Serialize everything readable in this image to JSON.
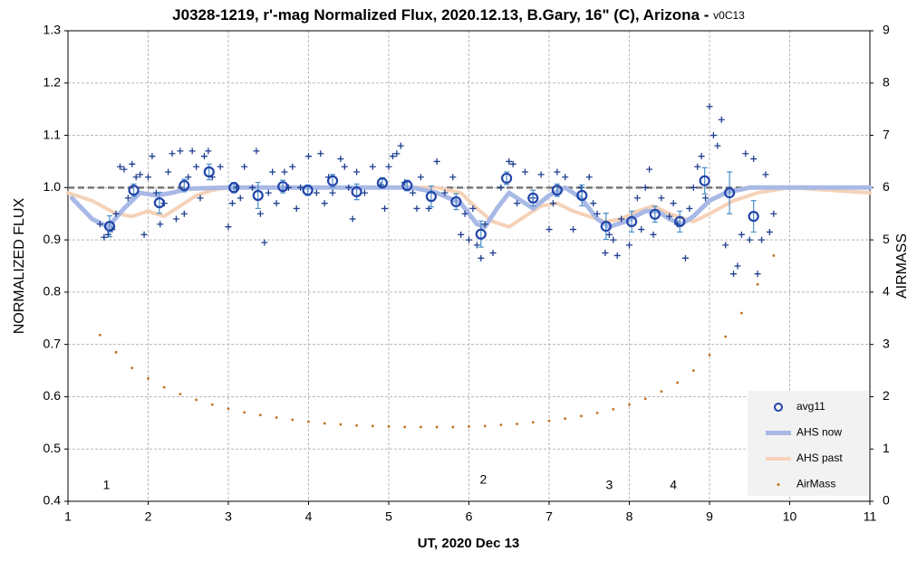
{
  "chart_data": {
    "type": "scatter",
    "title": "J0328-1219, r'-mag Normalized Flux, 2020.12.13, B.Gary, 16\" (C), Arizona - ",
    "title_suffix": "v0C13",
    "xlabel": "UT, 2020 Dec 13",
    "ylabel": "NORMALIZED FLUX",
    "y2label": "AIRMASS",
    "xlim": [
      1,
      11
    ],
    "xticks": [
      1,
      2,
      3,
      4,
      5,
      6,
      7,
      8,
      9,
      10,
      11
    ],
    "ylim": [
      0.4,
      1.3
    ],
    "yticks": [
      0.4,
      0.5,
      0.6,
      0.7,
      0.8,
      0.9,
      {
        "value": 1,
        "label": "1.0"
      },
      1.1,
      1.2,
      1.3
    ],
    "y2lim": [
      0,
      9
    ],
    "y2ticks": [
      0,
      1,
      2,
      3,
      4,
      5,
      6,
      7,
      8,
      9
    ],
    "grid": true,
    "legend": "lower right",
    "reference_line": 1,
    "annotations": [
      {
        "text": "1",
        "x": 1.48,
        "y": 0.43
      },
      {
        "text": "2",
        "x": 6.18,
        "y": 0.44
      },
      {
        "text": "3",
        "x": 7.75,
        "y": 0.43
      },
      {
        "text": "4",
        "x": 8.55,
        "y": 0.43
      }
    ],
    "series": [
      {
        "marker": "plus",
        "color": "#1f3f8f",
        "x": [
          1.4,
          1.45,
          1.5,
          1.55,
          1.6,
          1.65,
          1.7,
          1.75,
          1.8,
          1.85,
          1.9,
          1.95,
          2.0,
          2.05,
          2.1,
          2.15,
          2.2,
          2.25,
          2.3,
          2.35,
          2.4,
          2.45,
          2.5,
          2.55,
          2.6,
          2.65,
          2.7,
          2.75,
          2.8,
          2.9,
          3.0,
          3.05,
          3.1,
          3.15,
          3.2,
          3.3,
          3.35,
          3.4,
          3.45,
          3.5,
          3.55,
          3.6,
          3.7,
          3.75,
          3.8,
          3.85,
          3.9,
          4.0,
          4.1,
          4.15,
          4.2,
          4.25,
          4.3,
          4.4,
          4.45,
          4.5,
          4.55,
          4.6,
          4.7,
          4.8,
          4.9,
          4.95,
          5.0,
          5.05,
          5.1,
          5.15,
          5.2,
          5.3,
          5.35,
          5.4,
          5.5,
          5.6,
          5.7,
          5.8,
          5.9,
          5.95,
          6.0,
          6.05,
          6.1,
          6.15,
          6.2,
          6.3,
          6.4,
          6.5,
          6.55,
          6.6,
          6.7,
          6.8,
          6.9,
          7.0,
          7.05,
          7.1,
          7.2,
          7.3,
          7.4,
          7.5,
          7.55,
          7.6,
          7.7,
          7.75,
          7.8,
          7.85,
          7.9,
          8.0,
          8.1,
          8.15,
          8.2,
          8.25,
          8.3,
          8.4,
          8.5,
          8.55,
          8.6,
          8.7,
          8.75,
          8.8,
          8.85,
          8.9,
          8.95,
          9.0,
          9.05,
          9.1,
          9.15,
          9.2,
          9.3,
          9.35,
          9.4,
          9.45,
          9.5,
          9.55,
          9.6,
          9.65,
          9.7,
          9.75,
          9.8
        ],
        "values": [
          0.93,
          0.905,
          0.91,
          0.92,
          0.95,
          1.04,
          1.035,
          0.98,
          1.045,
          1.02,
          1.025,
          0.91,
          1.02,
          1.06,
          0.99,
          0.93,
          0.97,
          1.03,
          1.065,
          0.94,
          1.07,
          0.95,
          1.02,
          1.07,
          1.04,
          0.98,
          1.06,
          1.07,
          1.02,
          1.04,
          0.925,
          0.97,
          1.0,
          0.98,
          1.04,
          1.0,
          1.07,
          0.95,
          0.895,
          0.99,
          1.03,
          0.97,
          1.03,
          1.0,
          1.04,
          0.96,
          1.0,
          1.06,
          0.99,
          1.065,
          0.97,
          1.02,
          0.99,
          1.055,
          1.04,
          1.0,
          0.94,
          1.03,
          0.99,
          1.04,
          1.005,
          0.96,
          1.04,
          1.06,
          1.065,
          1.08,
          1.01,
          0.99,
          0.96,
          1.02,
          0.96,
          1.05,
          0.99,
          1.02,
          0.91,
          0.95,
          0.9,
          0.96,
          0.89,
          0.865,
          0.93,
          0.875,
          1.0,
          1.05,
          1.045,
          0.97,
          1.03,
          0.98,
          1.025,
          0.92,
          0.97,
          1.03,
          1.02,
          0.92,
          1.0,
          1.02,
          0.97,
          0.95,
          0.875,
          0.91,
          0.9,
          0.87,
          0.94,
          0.89,
          0.98,
          0.92,
          1.0,
          1.035,
          0.91,
          0.98,
          0.945,
          0.97,
          0.93,
          0.865,
          0.96,
          1.0,
          1.04,
          1.06,
          0.98,
          1.155,
          1.1,
          1.08,
          1.13,
          0.89,
          0.835,
          0.85,
          0.91,
          1.065,
          0.9,
          1.055,
          0.835,
          0.9,
          1.025,
          0.915,
          0.95
        ]
      },
      {
        "name": "avg11",
        "marker": "circle",
        "color": "#2244aa",
        "error_color": "#4a90c8",
        "x": [
          1.52,
          1.82,
          2.14,
          2.45,
          2.76,
          3.07,
          3.37,
          3.68,
          3.99,
          4.3,
          4.6,
          4.92,
          5.23,
          5.53,
          5.84,
          6.15,
          6.47,
          6.8,
          7.1,
          7.41,
          7.71,
          8.03,
          8.32,
          8.63,
          8.94,
          9.25,
          9.55
        ],
        "values": [
          0.926,
          0.995,
          0.971,
          1.004,
          1.03,
          1.0,
          0.985,
          1.002,
          0.995,
          1.013,
          0.992,
          1.009,
          1.004,
          0.983,
          0.973,
          0.911,
          1.018,
          0.98,
          0.995,
          0.985,
          0.926,
          0.935,
          0.949,
          0.935,
          1.013,
          0.99,
          0.945
        ],
        "errors": [
          0.02,
          0.012,
          0.02,
          0.012,
          0.015,
          0.01,
          0.025,
          0.012,
          0.01,
          0.012,
          0.015,
          0.01,
          0.01,
          0.02,
          0.015,
          0.025,
          0.012,
          0.015,
          0.012,
          0.02,
          0.025,
          0.02,
          0.015,
          0.02,
          0.025,
          0.04,
          0.03
        ]
      },
      {
        "name": "AHS now",
        "marker": "line",
        "color": "#a9b9e6",
        "width": 5,
        "x": [
          1.05,
          1.3,
          1.5,
          1.7,
          1.9,
          2.1,
          2.3,
          2.5,
          3.0,
          5.3,
          5.6,
          5.9,
          6.1,
          6.2,
          6.35,
          6.5,
          6.7,
          6.8,
          7.0,
          7.2,
          7.4,
          7.6,
          7.75,
          7.95,
          8.2,
          8.35,
          8.5,
          8.65,
          8.8,
          9.0,
          9.2,
          9.5,
          11
        ],
        "values": [
          0.98,
          0.94,
          0.925,
          0.96,
          0.99,
          0.985,
          0.99,
          0.998,
          1.0,
          1.0,
          0.99,
          0.97,
          0.93,
          0.925,
          0.96,
          0.99,
          0.97,
          0.96,
          0.985,
          1.0,
          0.98,
          0.94,
          0.925,
          0.935,
          0.955,
          0.955,
          0.94,
          0.93,
          0.945,
          0.975,
          0.99,
          1.0,
          1.0
        ]
      },
      {
        "name": "AHS past",
        "marker": "line",
        "color": "#f5d2b8",
        "width": 4,
        "x": [
          1.0,
          1.3,
          1.6,
          1.8,
          2.0,
          2.2,
          2.4,
          2.6,
          2.8,
          3.0,
          5.6,
          5.9,
          6.1,
          6.3,
          6.5,
          6.7,
          6.9,
          7.1,
          7.3,
          7.5,
          7.7,
          7.9,
          8.1,
          8.3,
          8.5,
          8.8,
          9.0,
          9.3,
          9.6,
          10.0,
          11.0
        ],
        "values": [
          0.99,
          0.975,
          0.95,
          0.945,
          0.955,
          0.945,
          0.965,
          0.985,
          0.995,
          1.0,
          1.0,
          0.99,
          0.96,
          0.935,
          0.925,
          0.945,
          0.965,
          0.97,
          0.955,
          0.945,
          0.935,
          0.94,
          0.955,
          0.965,
          0.95,
          0.935,
          0.95,
          0.975,
          0.99,
          1.0,
          0.99
        ]
      },
      {
        "name": "AirMass",
        "marker": "dot",
        "color": "#c0701f",
        "axis": "y2",
        "x": [
          1.4,
          1.6,
          1.8,
          2.0,
          2.2,
          2.4,
          2.6,
          2.8,
          3.0,
          3.2,
          3.4,
          3.6,
          3.8,
          4.0,
          4.2,
          4.4,
          4.6,
          4.8,
          5.0,
          5.2,
          5.4,
          5.6,
          5.8,
          6.0,
          6.2,
          6.4,
          6.6,
          6.8,
          7.0,
          7.2,
          7.4,
          7.6,
          7.8,
          8.0,
          8.2,
          8.4,
          8.6,
          8.8,
          9.0,
          9.2,
          9.4,
          9.6,
          9.8
        ],
        "values": [
          3.18,
          2.85,
          2.55,
          2.35,
          2.18,
          2.05,
          1.94,
          1.85,
          1.77,
          1.7,
          1.65,
          1.6,
          1.56,
          1.52,
          1.49,
          1.47,
          1.45,
          1.44,
          1.43,
          1.42,
          1.42,
          1.42,
          1.42,
          1.43,
          1.44,
          1.46,
          1.48,
          1.51,
          1.54,
          1.58,
          1.63,
          1.69,
          1.76,
          1.85,
          1.96,
          2.1,
          2.27,
          2.5,
          2.8,
          3.15,
          3.6,
          4.15,
          4.7
        ]
      }
    ]
  }
}
